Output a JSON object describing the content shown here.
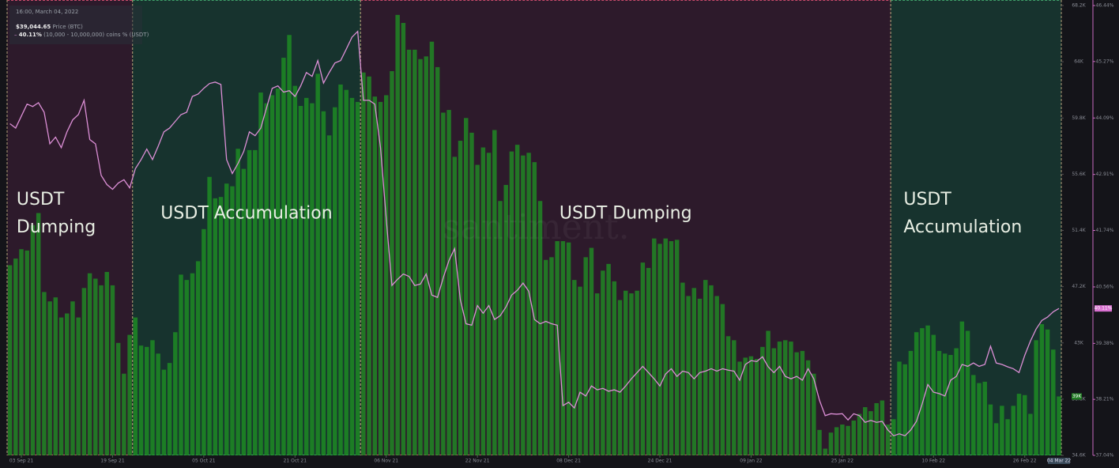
{
  "chart_data": {
    "type": "bar-line",
    "x": [
      "2021-09-01",
      "2021-09-02",
      "2021-09-03",
      "2021-09-04",
      "2021-09-05",
      "2021-09-06",
      "2021-09-07",
      "2021-09-08",
      "2021-09-09",
      "2021-09-10",
      "2021-09-11",
      "2021-09-12",
      "2021-09-13",
      "2021-09-14",
      "2021-09-15",
      "2021-09-16",
      "2021-09-17",
      "2021-09-18",
      "2021-09-19",
      "2021-09-20",
      "2021-09-21",
      "2021-09-22",
      "2021-09-23",
      "2021-09-24",
      "2021-09-25",
      "2021-09-26",
      "2021-09-27",
      "2021-09-28",
      "2021-09-29",
      "2021-09-30",
      "2021-10-01",
      "2021-10-02",
      "2021-10-03",
      "2021-10-04",
      "2021-10-05",
      "2021-10-06",
      "2021-10-07",
      "2021-10-08",
      "2021-10-09",
      "2021-10-10",
      "2021-10-11",
      "2021-10-12",
      "2021-10-13",
      "2021-10-14",
      "2021-10-15",
      "2021-10-16",
      "2021-10-17",
      "2021-10-18",
      "2021-10-19",
      "2021-10-20",
      "2021-10-21",
      "2021-10-22",
      "2021-10-23",
      "2021-10-24",
      "2021-10-25",
      "2021-10-26",
      "2021-10-27",
      "2021-10-28",
      "2021-10-29",
      "2021-10-30",
      "2021-10-31",
      "2021-11-01",
      "2021-11-02",
      "2021-11-03",
      "2021-11-04",
      "2021-11-05",
      "2021-11-06",
      "2021-11-07",
      "2021-11-08",
      "2021-11-09",
      "2021-11-10",
      "2021-11-11",
      "2021-11-12",
      "2021-11-13",
      "2021-11-14",
      "2021-11-15",
      "2021-11-16",
      "2021-11-17",
      "2021-11-18",
      "2021-11-19",
      "2021-11-20",
      "2021-11-21",
      "2021-11-22",
      "2021-11-23",
      "2021-11-24",
      "2021-11-25",
      "2021-11-26",
      "2021-11-27",
      "2021-11-28",
      "2021-11-29",
      "2021-11-30",
      "2021-12-01",
      "2021-12-02",
      "2021-12-03",
      "2021-12-04",
      "2021-12-05",
      "2021-12-06",
      "2021-12-07",
      "2021-12-08",
      "2021-12-09",
      "2021-12-10",
      "2021-12-11",
      "2021-12-12",
      "2021-12-13",
      "2021-12-14",
      "2021-12-15",
      "2021-12-16",
      "2021-12-17",
      "2021-12-18",
      "2021-12-19",
      "2021-12-20",
      "2021-12-21",
      "2021-12-22",
      "2021-12-23",
      "2021-12-24",
      "2021-12-25",
      "2021-12-26",
      "2021-12-27",
      "2021-12-28",
      "2021-12-29",
      "2021-12-30",
      "2021-12-31",
      "2022-01-01",
      "2022-01-02",
      "2022-01-03",
      "2022-01-04",
      "2022-01-05",
      "2022-01-06",
      "2022-01-07",
      "2022-01-08",
      "2022-01-09",
      "2022-01-10",
      "2022-01-11",
      "2022-01-12",
      "2022-01-13",
      "2022-01-14",
      "2022-01-15",
      "2022-01-16",
      "2022-01-17",
      "2022-01-18",
      "2022-01-19",
      "2022-01-20",
      "2022-01-21",
      "2022-01-22",
      "2022-01-23",
      "2022-01-24",
      "2022-01-25",
      "2022-01-26",
      "2022-01-27",
      "2022-01-28",
      "2022-01-29",
      "2022-01-30",
      "2022-01-31",
      "2022-02-01",
      "2022-02-02",
      "2022-02-03",
      "2022-02-04",
      "2022-02-05",
      "2022-02-06",
      "2022-02-07",
      "2022-02-08",
      "2022-02-09",
      "2022-02-10",
      "2022-02-11",
      "2022-02-12",
      "2022-02-13",
      "2022-02-14",
      "2022-02-15",
      "2022-02-16",
      "2022-02-17",
      "2022-02-18",
      "2022-02-19",
      "2022-02-20",
      "2022-02-21",
      "2022-02-22",
      "2022-02-23",
      "2022-02-24",
      "2022-02-25",
      "2022-02-26",
      "2022-02-27",
      "2022-02-28",
      "2022-03-01",
      "2022-03-02",
      "2022-03-03",
      "2022-03-04"
    ],
    "xlim": [
      "2021-09-01",
      "2022-03-04"
    ],
    "xticks": [
      {
        "value": "2021-09-03",
        "label": "03 Sep 21"
      },
      {
        "value": "2021-09-19",
        "label": "19 Sep 21"
      },
      {
        "value": "2021-10-05",
        "label": "05 Oct 21"
      },
      {
        "value": "2021-10-21",
        "label": "21 Oct 21"
      },
      {
        "value": "2021-11-06",
        "label": "06 Nov 21"
      },
      {
        "value": "2021-11-22",
        "label": "22 Nov 21"
      },
      {
        "value": "2021-12-08",
        "label": "08 Dec 21"
      },
      {
        "value": "2021-12-24",
        "label": "24 Dec 21"
      },
      {
        "value": "2022-01-09",
        "label": "09 Jan 22"
      },
      {
        "value": "2022-01-25",
        "label": "25 Jan 22"
      },
      {
        "value": "2022-02-10",
        "label": "10 Feb 22"
      },
      {
        "value": "2022-02-26",
        "label": "26 Feb 22"
      }
    ],
    "ylim": [
      34600,
      68200
    ],
    "yticks": [
      {
        "value": 34600,
        "label": "34.6K"
      },
      {
        "value": 38800,
        "label": "38.8K"
      },
      {
        "value": 43000,
        "label": "43K"
      },
      {
        "value": 47200,
        "label": "47.2K"
      },
      {
        "value": 51400,
        "label": "51.4K"
      },
      {
        "value": 55600,
        "label": "55.6K"
      },
      {
        "value": 59800,
        "label": "59.8K"
      },
      {
        "value": 64000,
        "label": "64K"
      },
      {
        "value": 68200,
        "label": "68.2K"
      }
    ],
    "y2lim": [
      37.04,
      46.44
    ],
    "y2ticks": [
      {
        "value": 37.04,
        "label": "37.04%"
      },
      {
        "value": 38.21,
        "label": "38.21%"
      },
      {
        "value": 39.38,
        "label": "39.38%"
      },
      {
        "value": 40.56,
        "label": "40.56%"
      },
      {
        "value": 41.74,
        "label": "41.74%"
      },
      {
        "value": 42.91,
        "label": "42.91%"
      },
      {
        "value": 44.09,
        "label": "44.09%"
      },
      {
        "value": 45.27,
        "label": "45.27%"
      },
      {
        "value": 46.44,
        "label": "46.44%"
      }
    ],
    "series": [
      {
        "name": "Price (BTC)",
        "type": "bar",
        "color": "#1f9a22",
        "values": [
          48800,
          49300,
          50000,
          49900,
          51800,
          52700,
          46800,
          46100,
          46400,
          44900,
          45200,
          46100,
          44900,
          47100,
          48200,
          47800,
          47300,
          48300,
          47300,
          43000,
          40700,
          43600,
          44900,
          42800,
          42700,
          43200,
          42200,
          41000,
          41500,
          43800,
          48100,
          47700,
          48200,
          49100,
          51500,
          55400,
          53800,
          53900,
          54900,
          54700,
          57500,
          56000,
          57400,
          57400,
          61700,
          60900,
          61500,
          62000,
          64300,
          66000,
          62200,
          60700,
          61300,
          60900,
          63100,
          60300,
          58500,
          60600,
          62300,
          61900,
          61300,
          61000,
          63200,
          62900,
          61400,
          61000,
          61500,
          63300,
          67500,
          66900,
          64900,
          64900,
          64200,
          64400,
          65500,
          63600,
          60200,
          60400,
          56900,
          58100,
          59800,
          58700,
          56300,
          57600,
          57200,
          58900,
          53600,
          54800,
          57300,
          57800,
          57000,
          57200,
          56500,
          53600,
          49200,
          49400,
          50600,
          50600,
          50500,
          47700,
          47200,
          49400,
          50100,
          46700,
          48400,
          48900,
          47600,
          46200,
          46900,
          46700,
          46900,
          49000,
          48600,
          50800,
          50400,
          50800,
          50600,
          50700,
          47500,
          46500,
          47100,
          46300,
          47700,
          47300,
          46500,
          45900,
          43500,
          43200,
          41600,
          41900,
          42000,
          41800,
          42700,
          43900,
          42600,
          43100,
          43200,
          43100,
          42300,
          42400,
          41700,
          40700,
          36500,
          35100,
          36300,
          36700,
          36900,
          36800,
          37200,
          37700,
          38200,
          37900,
          38500,
          38700,
          36900,
          37300,
          41600,
          41400,
          42400,
          43800,
          44100,
          44300,
          43600,
          42400,
          42200,
          42100,
          42600,
          44600,
          43900,
          40600,
          40000,
          40100,
          38400,
          37000,
          38300,
          37300,
          38300,
          39200,
          39100,
          37700,
          43200,
          44400,
          44000,
          42500,
          39000
        ]
      },
      {
        "name": "(10,000 - 10,000,000) coins % (USDT)",
        "type": "line",
        "axis": "y2",
        "color": "#dc8fd6",
        "values": [
          43.97,
          43.88,
          44.13,
          44.38,
          44.33,
          44.41,
          44.21,
          43.55,
          43.69,
          43.47,
          43.8,
          44.05,
          44.16,
          44.46,
          43.64,
          43.55,
          42.89,
          42.7,
          42.6,
          42.73,
          42.8,
          42.63,
          43.03,
          43.22,
          43.44,
          43.22,
          43.5,
          43.8,
          43.88,
          44.02,
          44.16,
          44.21,
          44.54,
          44.59,
          44.71,
          44.81,
          44.84,
          44.79,
          43.22,
          42.93,
          43.14,
          43.39,
          43.8,
          43.72,
          43.88,
          44.3,
          44.71,
          44.76,
          44.63,
          44.66,
          44.54,
          44.76,
          45.04,
          44.96,
          45.29,
          44.82,
          45.04,
          45.24,
          45.29,
          45.53,
          45.78,
          45.9,
          44.46,
          44.46,
          44.38,
          43.47,
          41.99,
          40.59,
          40.72,
          40.83,
          40.78,
          40.59,
          40.62,
          40.83,
          40.39,
          40.34,
          40.75,
          41.11,
          41.36,
          40.29,
          39.79,
          39.76,
          40.17,
          40.01,
          40.17,
          39.88,
          39.96,
          40.14,
          40.39,
          40.49,
          40.64,
          40.47,
          39.88,
          39.79,
          39.84,
          39.79,
          39.76,
          38.08,
          38.15,
          38.03,
          38.36,
          38.28,
          38.49,
          38.41,
          38.44,
          38.38,
          38.41,
          38.36,
          38.49,
          38.64,
          38.77,
          38.9,
          38.77,
          38.64,
          38.49,
          38.74,
          38.85,
          38.69,
          38.8,
          38.77,
          38.64,
          38.77,
          38.8,
          38.85,
          38.8,
          38.85,
          38.82,
          38.8,
          38.61,
          38.94,
          39.02,
          39.0,
          39.1,
          38.89,
          38.77,
          38.9,
          38.69,
          38.64,
          38.69,
          38.61,
          38.85,
          38.64,
          38.19,
          37.87,
          37.91,
          37.9,
          37.91,
          37.78,
          37.91,
          37.87,
          37.73,
          37.77,
          37.73,
          37.75,
          37.57,
          37.45,
          37.49,
          37.45,
          37.57,
          37.75,
          38.11,
          38.52,
          38.36,
          38.33,
          38.28,
          38.61,
          38.69,
          38.94,
          38.9,
          38.97,
          38.9,
          38.94,
          39.32,
          38.97,
          38.94,
          38.89,
          38.85,
          38.77,
          39.13,
          39.43,
          39.68,
          39.86,
          39.93,
          40.04,
          40.11
        ]
      }
    ],
    "regions": [
      {
        "label": "USDT Dumping",
        "start": "2021-09-01",
        "end": "2021-09-22",
        "color": "#2d1a2b",
        "border": "#c94a6a"
      },
      {
        "label": "USDT Accumulation",
        "start": "2021-09-23",
        "end": "2021-11-01",
        "color": "#17332e",
        "border": "#3fa06a"
      },
      {
        "label": "USDT Dumping",
        "start": "2021-11-02",
        "end": "2022-02-02",
        "color": "#2d1a2b",
        "border": "#c94a6a"
      },
      {
        "label": "USDT Accumulation",
        "start": "2022-02-03",
        "end": "2022-03-04",
        "color": "#17332e",
        "border": "#3fa06a"
      }
    ],
    "tooltip": {
      "time": "16:00, March 04, 2022",
      "price": "$39,044.65",
      "share": "40.11%"
    },
    "price_badge": "39K",
    "x_badge": "04 Mar 22",
    "watermark": "santiment."
  }
}
